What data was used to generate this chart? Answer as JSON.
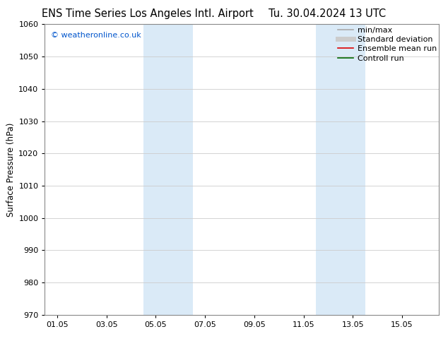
{
  "title_left": "ENS Time Series Los Angeles Intl. Airport",
  "title_right": "Tu. 30.04.2024 13 UTC",
  "ylabel": "Surface Pressure (hPa)",
  "ylim": [
    970,
    1060
  ],
  "yticks": [
    970,
    980,
    990,
    1000,
    1010,
    1020,
    1030,
    1040,
    1050,
    1060
  ],
  "xtick_labels": [
    "01.05",
    "03.05",
    "05.05",
    "07.05",
    "09.05",
    "11.05",
    "13.05",
    "15.05"
  ],
  "xtick_positions": [
    0,
    2,
    4,
    6,
    8,
    10,
    12,
    14
  ],
  "xlim": [
    -0.5,
    15.5
  ],
  "shaded_bands": [
    {
      "x_start": 3.5,
      "x_end": 5.5,
      "color": "#daeaf7"
    },
    {
      "x_start": 10.5,
      "x_end": 12.5,
      "color": "#daeaf7"
    }
  ],
  "watermark_text": "© weatheronline.co.uk",
  "watermark_color": "#0055cc",
  "legend_items": [
    {
      "label": "min/max",
      "color": "#aaaaaa",
      "lw": 1.2,
      "style": "-"
    },
    {
      "label": "Standard deviation",
      "color": "#cccccc",
      "lw": 5,
      "style": "-"
    },
    {
      "label": "Ensemble mean run",
      "color": "#dd0000",
      "lw": 1.2,
      "style": "-"
    },
    {
      "label": "Controll run",
      "color": "#006600",
      "lw": 1.2,
      "style": "-"
    }
  ],
  "bg_color": "#ffffff",
  "grid_color": "#cccccc",
  "title_fontsize": 10.5,
  "ylabel_fontsize": 8.5,
  "tick_fontsize": 8,
  "legend_fontsize": 8,
  "watermark_fontsize": 8
}
